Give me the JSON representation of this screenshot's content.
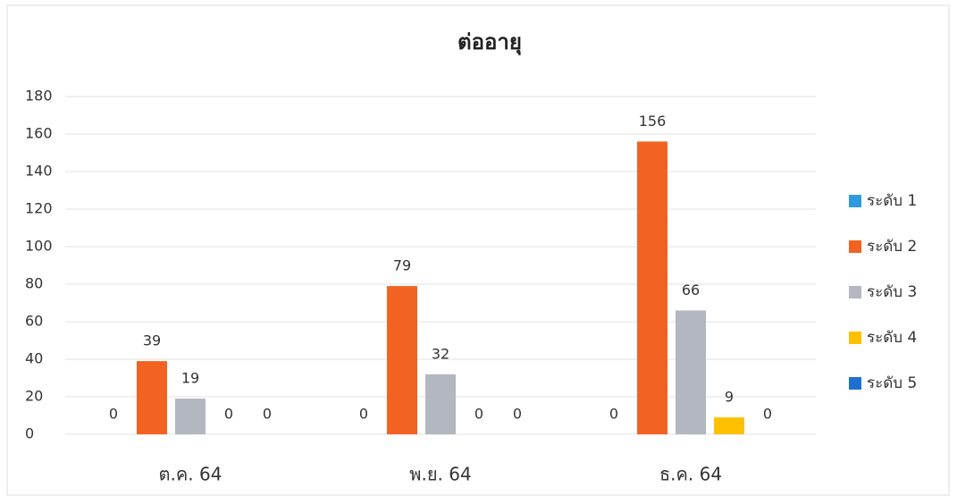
{
  "chart_data": {
    "type": "bar",
    "title": "ต่ออายุ",
    "categories": [
      "ต.ค. 64",
      "พ.ย. 64",
      "ธ.ค. 64"
    ],
    "series": [
      {
        "name": "ระดับ 1",
        "color": "#2e9be0",
        "values": [
          0,
          0,
          0
        ]
      },
      {
        "name": "ระดับ 2",
        "color": "#f26322",
        "values": [
          39,
          79,
          156
        ]
      },
      {
        "name": "ระดับ 3",
        "color": "#b3b7c0",
        "values": [
          19,
          32,
          66
        ]
      },
      {
        "name": "ระดับ 4",
        "color": "#ffc000",
        "values": [
          0,
          0,
          9
        ]
      },
      {
        "name": "ระดับ 5",
        "color": "#1f6fd1",
        "values": [
          0,
          0,
          0
        ]
      }
    ],
    "ylim": [
      0,
      180
    ],
    "yticks": [
      0,
      20,
      40,
      60,
      80,
      100,
      120,
      140,
      160,
      180
    ],
    "grid": true,
    "legend": "right"
  }
}
